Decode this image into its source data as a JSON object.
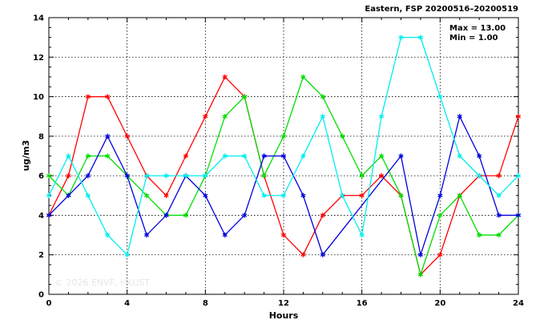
{
  "chart_data": {
    "type": "line",
    "title": "Eastern, FSP 20200516–20200519",
    "xlabel": "Hours",
    "ylabel": "ug/m3",
    "xlim": [
      0,
      24
    ],
    "ylim": [
      0,
      14
    ],
    "xticks": [
      0,
      4,
      8,
      12,
      16,
      20,
      24
    ],
    "yticks": [
      0,
      2,
      4,
      6,
      8,
      10,
      12,
      14
    ],
    "grid": true,
    "stats": {
      "max_label": "Max = 13.00",
      "min_label": "Min =  1.00"
    },
    "watermark": "© 2026  ENVF, HKUST",
    "x": [
      0,
      1,
      2,
      3,
      4,
      5,
      6,
      7,
      8,
      9,
      10,
      11,
      12,
      13,
      14,
      15,
      16,
      17,
      18,
      19,
      20,
      21,
      22,
      23,
      24
    ],
    "series": [
      {
        "color": "#ff0000",
        "values": [
          4,
          6,
          10,
          10,
          8,
          6,
          5,
          7,
          9,
          11,
          10,
          6,
          3,
          2,
          4,
          5,
          5,
          6,
          5,
          1,
          2,
          5,
          6,
          6,
          9
        ]
      },
      {
        "color": "#00dd00",
        "values": [
          6,
          5,
          7,
          7,
          6,
          5,
          4,
          4,
          6,
          9,
          10,
          6,
          8,
          11,
          10,
          8,
          6,
          7,
          5,
          1,
          4,
          5,
          3,
          3,
          4
        ]
      },
      {
        "color": "#0000dd",
        "values": [
          4,
          5,
          6,
          8,
          6,
          3,
          4,
          6,
          5,
          3,
          4,
          7,
          7,
          5,
          2,
          null,
          null,
          null,
          7,
          2,
          5,
          9,
          7,
          4,
          4
        ]
      },
      {
        "color": "#00eeee",
        "values": [
          5,
          7,
          5,
          3,
          2,
          6,
          6,
          6,
          6,
          7,
          7,
          5,
          5,
          7,
          9,
          5,
          3,
          9,
          13,
          13,
          10,
          7,
          6,
          5,
          6
        ]
      }
    ]
  }
}
